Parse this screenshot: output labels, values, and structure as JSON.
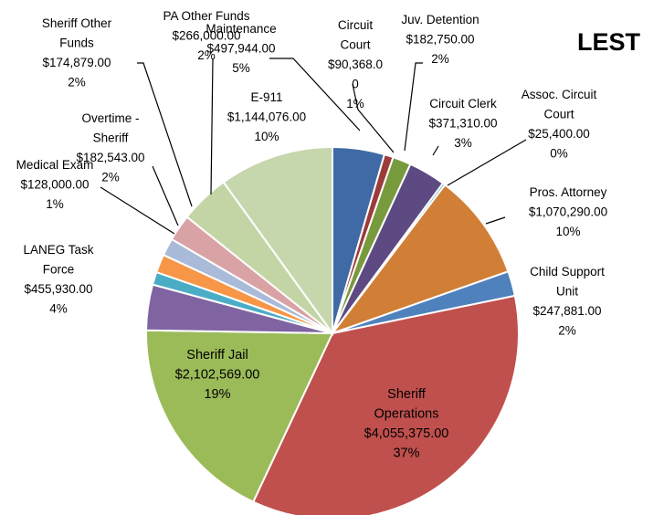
{
  "chart_data": {
    "type": "pie",
    "title": "LEST",
    "slices": [
      {
        "label": [
          "Circuit",
          "Court",
          "$90,368.0",
          "0",
          "1%"
        ],
        "value": 90368.0,
        "color": "#9c3c3a"
      },
      {
        "label": [
          "Juv. Detention",
          "$182,750.00",
          "2%"
        ],
        "value": 182750.0,
        "color": "#779a3d"
      },
      {
        "label": [
          "Circuit Clerk",
          "$371,310.00",
          "3%"
        ],
        "value": 371310.0,
        "color": "#5e4a82"
      },
      {
        "label": [
          "Assoc. Circuit",
          "Court",
          "$25,400.00",
          "0%"
        ],
        "value": 25400.0,
        "color": "#2f9fba"
      },
      {
        "label": [
          "Pros. Attorney",
          "$1,070,290.00",
          "10%"
        ],
        "value": 1070290.0,
        "color": "#d17f36"
      },
      {
        "label": [
          "Child Support",
          "Unit",
          "$247,881.00",
          "2%"
        ],
        "value": 247881.0,
        "color": "#4f81bd"
      },
      {
        "label": [
          "Sheriff",
          "Operations",
          "$4,055,375.00",
          "37%"
        ],
        "value": 4055375.0,
        "color": "#c0504d"
      },
      {
        "label": [
          "Sheriff Jail",
          "$2,102,569.00",
          "19%"
        ],
        "value": 2102569.0,
        "color": "#9bbb59"
      },
      {
        "label": [
          "LANEG Task",
          "Force",
          "$455,930.00",
          "4%"
        ],
        "value": 455930.0,
        "color": "#8064a2"
      },
      {
        "label": [
          "Medical Exam",
          "$128,000.00",
          "1%"
        ],
        "value": 128000.0,
        "color": "#4bacc6"
      },
      {
        "label": [
          "Overtime -",
          "Sheriff",
          "$182,543.00",
          "2%"
        ],
        "value": 182543.0,
        "color": "#f79646"
      },
      {
        "label": [
          "Sheriff Other",
          "Funds",
          "$174,879.00",
          "2%"
        ],
        "value": 174879.0,
        "color": "#aabbd9"
      },
      {
        "label": [
          "PA Other Funds",
          "$266,000.00",
          "2%"
        ],
        "value": 266000.0,
        "color": "#d9a3a6"
      },
      {
        "label": [
          "Maintenance",
          "$497,944.00",
          "5%"
        ],
        "value": 497944.0,
        "color": "#c3d5a5"
      },
      {
        "label": [
          "E-911",
          "$1,144,076.00",
          "10%"
        ],
        "value": 1144076.0,
        "color": "#c6d6ad"
      },
      {
        "label": [
          "",
          "",
          ""
        ],
        "value": 0,
        "color": "#3f6aa5"
      }
    ],
    "first_slice": {
      "label": [
        "",
        "",
        ""
      ],
      "value": 518540,
      "color": "#3f6aa5"
    }
  }
}
